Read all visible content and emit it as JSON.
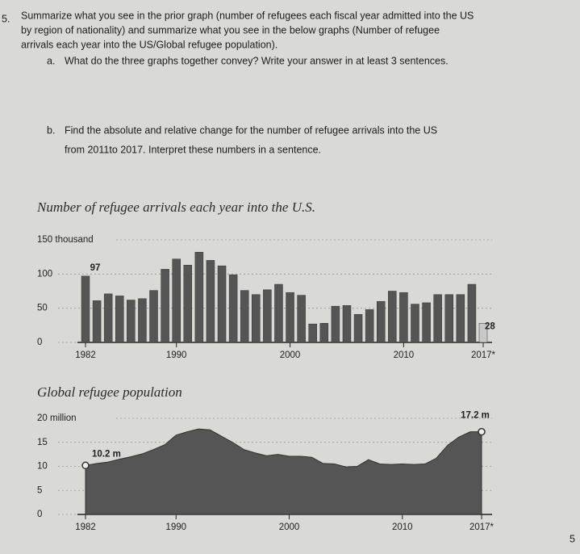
{
  "question": {
    "number": "5.",
    "lines": [
      "Summarize what you see in the prior graph (number of refugees each fiscal year admitted into the US",
      "by region of nationality) and summarize what you see in the below graphs (Number of refugee",
      "arrivals each year into the US/Global refugee population)."
    ],
    "parts": [
      {
        "label": "a.",
        "lines": [
          "What do the three graphs together convey? Write your answer in at least 3 sentences."
        ]
      },
      {
        "label": "b.",
        "lines": [
          "Find the absolute and relative change for the number of refugee arrivals into the US",
          "from 2011to 2017. Interpret these numbers in a sentence."
        ]
      }
    ]
  },
  "page_number": "5",
  "chart_data": [
    {
      "type": "bar",
      "title": "Number of refugee arrivals each year into the U.S.",
      "x": [
        1982,
        1983,
        1984,
        1985,
        1986,
        1987,
        1988,
        1989,
        1990,
        1991,
        1992,
        1993,
        1994,
        1995,
        1996,
        1997,
        1998,
        1999,
        2000,
        2001,
        2002,
        2003,
        2004,
        2005,
        2006,
        2007,
        2008,
        2009,
        2010,
        2011,
        2012,
        2013,
        2014,
        2015,
        2016,
        2017
      ],
      "values": [
        97,
        61,
        71,
        68,
        62,
        64,
        76,
        107,
        122,
        113,
        132,
        120,
        112,
        99,
        76,
        70,
        77,
        85,
        73,
        69,
        27,
        28,
        53,
        54,
        41,
        48,
        60,
        75,
        73,
        56,
        58,
        70,
        70,
        70,
        85,
        28
      ],
      "value_labels": [
        "97",
        null,
        null,
        null,
        null,
        null,
        null,
        null,
        null,
        null,
        null,
        null,
        null,
        null,
        null,
        null,
        null,
        null,
        null,
        null,
        null,
        null,
        null,
        null,
        null,
        null,
        null,
        null,
        null,
        null,
        null,
        null,
        null,
        null,
        null,
        "28"
      ],
      "colors": [
        "#555",
        "#555",
        "#555",
        "#555",
        "#555",
        "#555",
        "#555",
        "#555",
        "#555",
        "#555",
        "#555",
        "#555",
        "#555",
        "#555",
        "#555",
        "#555",
        "#555",
        "#555",
        "#555",
        "#555",
        "#555",
        "#555",
        "#555",
        "#555",
        "#555",
        "#555",
        "#555",
        "#555",
        "#555",
        "#555",
        "#555",
        "#555",
        "#555",
        "#555",
        "#555",
        "#c8c8c8"
      ],
      "xlim": [
        1982,
        2017
      ],
      "xticks": [
        1982,
        1990,
        2000,
        2010,
        {
          "value": 2017,
          "label": "2017*"
        }
      ],
      "ylim": [
        0,
        150
      ],
      "yticks": [
        0,
        50,
        100,
        {
          "value": 150,
          "label": "150 thousand"
        }
      ],
      "grid": true
    },
    {
      "type": "area",
      "title": "Global refugee population",
      "x": [
        1982,
        1983,
        1984,
        1985,
        1986,
        1987,
        1988,
        1989,
        1990,
        1991,
        1992,
        1993,
        1994,
        1995,
        1996,
        1997,
        1998,
        1999,
        2000,
        2001,
        2002,
        2003,
        2004,
        2005,
        2006,
        2007,
        2008,
        2009,
        2010,
        2011,
        2012,
        2013,
        2014,
        2015,
        2016,
        2017
      ],
      "values": [
        10.2,
        10.6,
        10.9,
        11.5,
        12.0,
        12.6,
        13.5,
        14.5,
        16.5,
        17.2,
        17.8,
        17.6,
        16.3,
        15.0,
        13.5,
        12.8,
        12.2,
        12.5,
        12.1,
        12.1,
        11.9,
        10.6,
        10.5,
        9.9,
        10.0,
        11.4,
        10.5,
        10.4,
        10.5,
        10.4,
        10.5,
        11.7,
        14.4,
        16.1,
        17.2,
        17.2
      ],
      "value_labels": [
        "10.2 m",
        null,
        null,
        null,
        null,
        null,
        null,
        null,
        null,
        null,
        null,
        null,
        null,
        null,
        null,
        null,
        null,
        null,
        null,
        null,
        null,
        null,
        null,
        null,
        null,
        null,
        null,
        null,
        null,
        null,
        null,
        null,
        null,
        null,
        null,
        "17.2 m"
      ],
      "color": "#555",
      "xlim": [
        1982,
        2017
      ],
      "xticks": [
        1982,
        1990,
        2000,
        2010,
        {
          "value": 2017,
          "label": "2017*"
        }
      ],
      "ylim": [
        0,
        20
      ],
      "yticks": [
        0,
        5,
        10,
        15,
        {
          "value": 20,
          "label": "20 million"
        }
      ],
      "grid": true
    }
  ]
}
